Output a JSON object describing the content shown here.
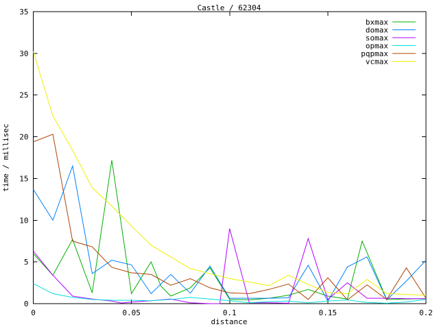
{
  "chart_data": {
    "type": "line",
    "title": "Castle / 62304",
    "xlabel": "distance",
    "ylabel": "time / millisec",
    "xlim": [
      0,
      0.2
    ],
    "ylim": [
      0,
      35
    ],
    "grid": false,
    "legend_position": "top-right-inside",
    "axis_color": "#000000",
    "background_color": "#ffffff",
    "x_ticks": [
      {
        "value": 0,
        "label": "0"
      },
      {
        "value": 0.05,
        "label": "0.05"
      },
      {
        "value": 0.1,
        "label": "0.1"
      },
      {
        "value": 0.15,
        "label": "0.15"
      },
      {
        "value": 0.2,
        "label": "0.2"
      }
    ],
    "y_ticks": [
      {
        "value": 0,
        "label": "0"
      },
      {
        "value": 5,
        "label": "5"
      },
      {
        "value": 10,
        "label": "10"
      },
      {
        "value": 15,
        "label": "15"
      },
      {
        "value": 20,
        "label": "20"
      },
      {
        "value": 25,
        "label": "25"
      },
      {
        "value": 30,
        "label": "30"
      },
      {
        "value": 35,
        "label": "35"
      }
    ],
    "series": [
      {
        "name": "bxmax",
        "color": "#00b000",
        "x": [
          0,
          0.01,
          0.02,
          0.03,
          0.04,
          0.05,
          0.06,
          0.065,
          0.07,
          0.08,
          0.09,
          0.1,
          0.11,
          0.12,
          0.13,
          0.14,
          0.15,
          0.16,
          0.1675,
          0.18,
          0.19,
          0.2
        ],
        "y": [
          6.0,
          3.4,
          7.7,
          1.3,
          17.2,
          1.2,
          5.0,
          2.1,
          0.9,
          1.9,
          4.3,
          0.5,
          0.45,
          0.65,
          1.0,
          1.7,
          0.9,
          0.55,
          7.5,
          0.5,
          0.55,
          0.6
        ]
      },
      {
        "name": "domax",
        "color": "#0080ff",
        "x": [
          0,
          0.01,
          0.02,
          0.03,
          0.04,
          0.05,
          0.06,
          0.07,
          0.08,
          0.09,
          0.1,
          0.11,
          0.12,
          0.13,
          0.14,
          0.15,
          0.16,
          0.17,
          0.18,
          0.19,
          0.2
        ],
        "y": [
          13.7,
          10.0,
          16.5,
          3.6,
          5.2,
          4.65,
          1.2,
          3.5,
          1.25,
          4.5,
          0.65,
          0.65,
          0.65,
          0.7,
          4.6,
          0.3,
          4.4,
          5.6,
          0.45,
          2.7,
          5.2
        ]
      },
      {
        "name": "somax",
        "color": "#b400ff",
        "x": [
          0,
          0.01,
          0.02,
          0.03,
          0.04,
          0.045,
          0.05,
          0.06,
          0.07,
          0.08,
          0.09,
          0.095,
          0.1,
          0.11,
          0.12,
          0.13,
          0.14,
          0.15,
          0.16,
          0.17,
          0.18,
          0.19,
          0.2
        ],
        "y": [
          6.3,
          3.4,
          0.9,
          0.55,
          0.3,
          0.07,
          0.2,
          0.35,
          0.55,
          0.1,
          0.0,
          0.0,
          9.0,
          0.1,
          0.1,
          0.05,
          7.8,
          0.5,
          2.5,
          0.65,
          0.65,
          0.6,
          0.6
        ]
      },
      {
        "name": "opmax",
        "color": "#00dede",
        "x": [
          0,
          0.01,
          0.02,
          0.03,
          0.04,
          0.05,
          0.06,
          0.07,
          0.08,
          0.09,
          0.1,
          0.11,
          0.12,
          0.13,
          0.14,
          0.15,
          0.16,
          0.17,
          0.18,
          0.19,
          0.2
        ],
        "y": [
          2.4,
          1.2,
          0.75,
          0.5,
          0.4,
          0.4,
          0.35,
          0.5,
          0.75,
          0.55,
          0.35,
          0.1,
          0.25,
          0.3,
          0.1,
          0.3,
          0.45,
          0.15,
          0.05,
          0.2,
          0.5
        ]
      },
      {
        "name": "pqpmax",
        "color": "#b04000",
        "x": [
          0,
          0.01,
          0.02,
          0.03,
          0.04,
          0.05,
          0.06,
          0.07,
          0.08,
          0.09,
          0.1,
          0.11,
          0.12,
          0.13,
          0.14,
          0.15,
          0.16,
          0.17,
          0.18,
          0.19,
          0.2
        ],
        "y": [
          19.4,
          20.3,
          7.5,
          6.8,
          4.35,
          3.7,
          3.5,
          2.2,
          3.0,
          1.9,
          1.3,
          1.2,
          1.7,
          2.35,
          0.5,
          3.1,
          0.45,
          2.25,
          0.5,
          4.3,
          0.65
        ]
      },
      {
        "name": "vcmax",
        "color": "#efef00",
        "x": [
          0,
          0.01,
          0.02,
          0.03,
          0.04,
          0.05,
          0.06,
          0.07,
          0.08,
          0.09,
          0.1,
          0.11,
          0.12,
          0.13,
          0.14,
          0.15,
          0.16,
          0.17,
          0.18,
          0.19,
          0.2
        ],
        "y": [
          30.2,
          22.5,
          18.4,
          13.9,
          11.7,
          9.3,
          7.0,
          5.6,
          4.2,
          3.6,
          3.0,
          2.6,
          2.15,
          3.4,
          2.3,
          1.35,
          1.2,
          2.9,
          1.2,
          1.1,
          1.0
        ]
      }
    ]
  }
}
